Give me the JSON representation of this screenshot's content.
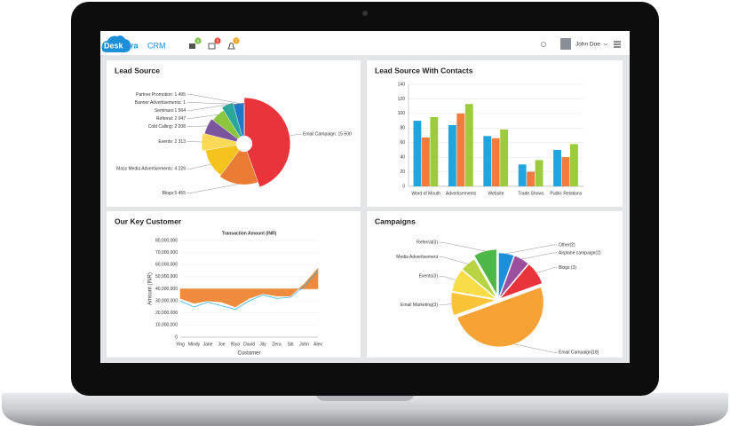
{
  "header": {
    "logo": "Desk",
    "logo_rest": "era",
    "product": "CRM",
    "badges": [
      "6",
      "5",
      "7"
    ],
    "user": "John Doe"
  },
  "chart_data": [
    {
      "type": "pie",
      "title": "Lead Source",
      "donut": true,
      "labels": [
        "Email Campaign: 15 500",
        "Blogs:5 455",
        "Mass Media Advertisements: 4 229",
        "Events: 2 313",
        "Cold Calling: 2 208",
        "Referral: 2 047",
        "Seminars:1 564",
        "Partner Promotion: 1 495",
        "Banner Advertisements: 1"
      ],
      "values": [
        15500,
        5455,
        4229,
        2313,
        2208,
        2047,
        1564,
        1495,
        1
      ],
      "colors": [
        "#e8343a",
        "#ea7d33",
        "#f6c21c",
        "#f9d955",
        "#7b569f",
        "#8cc63f",
        "#2aa79b",
        "#1f78c8",
        "#18418c"
      ]
    },
    {
      "type": "bar",
      "title": "Lead Source With Contacts",
      "categories": [
        "Word of Mouth",
        "Advertisements",
        "Website",
        "Trade Shows",
        "Public Relations"
      ],
      "series": [
        {
          "color": "#1fa5e0",
          "values": [
            90,
            84,
            69,
            30,
            50
          ]
        },
        {
          "color": "#f47b3b",
          "values": [
            67,
            100,
            66,
            20,
            40
          ]
        },
        {
          "color": "#9ccb3b",
          "values": [
            95,
            113,
            78,
            36,
            58
          ]
        }
      ],
      "ylim": [
        0,
        140
      ],
      "yticks": [
        0,
        20,
        40,
        60,
        80,
        100,
        120,
        140
      ],
      "grid": true
    },
    {
      "type": "area",
      "title": "Our Key Customer",
      "subtitle": "Transaction Amount (INR)",
      "y_label": "Amount (INR)",
      "x_label": "Customer",
      "categories": [
        "Ying",
        "Mindy",
        "Jane",
        "Joe",
        "Riya",
        "David",
        "Jity",
        "Zera",
        "Siti",
        "John",
        "Alex"
      ],
      "threshold": 40000000,
      "series": [
        {
          "color": "#f08a3c",
          "values": [
            32000000,
            28000000,
            30000000,
            29000000,
            25000000,
            32000000,
            36000000,
            34000000,
            34000000,
            44000000,
            57000000
          ]
        },
        {
          "color": "#35b3e6",
          "values": [
            30000000,
            25000000,
            29000000,
            26000000,
            23000000,
            30000000,
            35000000,
            32000000,
            33000000,
            42000000,
            55000000
          ]
        }
      ],
      "ylim": [
        0,
        80000000
      ],
      "yticks": [
        {
          "value": 0,
          "label": "0"
        },
        {
          "value": 10000000,
          "label": "10,000,000"
        },
        {
          "value": 20000000,
          "label": "20,000,000"
        },
        {
          "value": 30000000,
          "label": "30,000,000"
        },
        {
          "value": 40000000,
          "label": "40,000,000"
        },
        {
          "value": 50000000,
          "label": "50,000,000"
        },
        {
          "value": 60000000,
          "label": "60,000,000"
        },
        {
          "value": 70000000,
          "label": "70,000,000"
        },
        {
          "value": 80000000,
          "label": "80,000,000"
        }
      ],
      "grid": true
    },
    {
      "type": "pie",
      "title": "Campaigns",
      "donut": false,
      "labels": [
        "Other(2)",
        "Airplane campaign(2)",
        "Blogs (3)",
        "Email Campaign[18]",
        "Email Marketing(3)",
        "Events(3)",
        "Media Advertisement",
        "Referral(3)"
      ],
      "values": [
        2,
        2,
        3,
        18,
        3,
        3,
        2,
        3
      ],
      "colors": [
        "#1e8fd6",
        "#9b4f9c",
        "#e8343a",
        "#f7a234",
        "#f9c437",
        "#f8dc48",
        "#b9d443",
        "#4db848"
      ]
    }
  ]
}
